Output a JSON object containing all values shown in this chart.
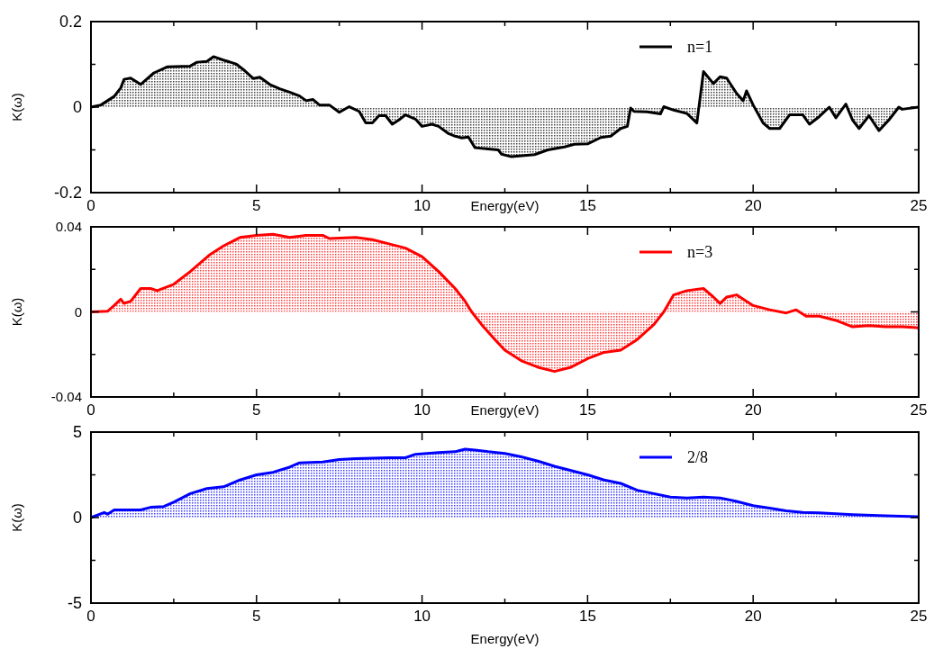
{
  "chart_data": [
    {
      "type": "area",
      "xlabel": "Energy(eV)",
      "ylabel": "K(ω)",
      "xlim": [
        0,
        25
      ],
      "xticks": [
        0,
        {
          "value": 2.5,
          "label": null
        },
        5,
        {
          "value": 7.5,
          "label": null
        },
        10,
        {
          "value": 12.5,
          "label": null
        },
        15,
        {
          "value": 17.5,
          "label": null
        },
        20,
        {
          "value": 22.5,
          "label": null
        },
        25
      ],
      "ylim": [
        -0.2,
        0.2
      ],
      "yticks": [
        -0.2,
        {
          "value": -0.1,
          "label": null
        },
        0,
        {
          "value": 0.1,
          "label": null
        },
        0.2
      ],
      "legend": "top right",
      "series": [
        {
          "name": "n=1",
          "color": "#000000",
          "x": [
            0,
            0.3,
            0.7,
            0.9,
            1.0,
            1.2,
            1.5,
            1.9,
            2.3,
            3.0,
            3.2,
            3.5,
            3.7,
            4.0,
            4.3,
            4.4,
            4.6,
            4.9,
            5.1,
            5.4,
            5.7,
            6.0,
            6.3,
            6.5,
            6.7,
            6.9,
            7.2,
            7.5,
            7.8,
            8.1,
            8.3,
            8.5,
            8.7,
            8.9,
            9.1,
            9.3,
            9.5,
            9.8,
            10.0,
            10.3,
            10.5,
            10.8,
            11.0,
            11.2,
            11.4,
            11.6,
            12.0,
            12.3,
            12.4,
            12.7,
            13.1,
            13.4,
            13.8,
            14.3,
            14.6,
            15.0,
            15.4,
            15.7,
            16.0,
            16.2,
            16.3,
            16.4,
            16.8,
            17.2,
            17.3,
            17.6,
            18.0,
            18.3,
            18.5,
            18.8,
            19.0,
            19.2,
            19.5,
            19.7,
            19.8,
            20.0,
            20.3,
            20.5,
            20.8,
            21.1,
            21.5,
            21.7,
            22.0,
            22.3,
            22.5,
            22.8,
            23.0,
            23.2,
            23.5,
            23.8,
            24.1,
            24.4,
            24.5,
            25
          ],
          "values": [
            0,
            0.005,
            0.025,
            0.045,
            0.065,
            0.068,
            0.053,
            0.08,
            0.094,
            0.096,
            0.105,
            0.107,
            0.118,
            0.11,
            0.103,
            0.1,
            0.088,
            0.067,
            0.07,
            0.053,
            0.043,
            0.035,
            0.026,
            0.015,
            0.018,
            0.005,
            0.005,
            -0.012,
            0.001,
            -0.01,
            -0.037,
            -0.037,
            -0.02,
            -0.02,
            -0.04,
            -0.03,
            -0.018,
            -0.028,
            -0.045,
            -0.04,
            -0.045,
            -0.062,
            -0.068,
            -0.072,
            -0.07,
            -0.095,
            -0.098,
            -0.1,
            -0.11,
            -0.116,
            -0.113,
            -0.111,
            -0.1,
            -0.093,
            -0.087,
            -0.086,
            -0.071,
            -0.068,
            -0.05,
            -0.045,
            -0.002,
            -0.01,
            -0.011,
            -0.016,
            0.001,
            -0.007,
            -0.015,
            -0.037,
            0.083,
            0.055,
            0.071,
            0.068,
            0.032,
            0.015,
            0.038,
            0.005,
            -0.037,
            -0.05,
            -0.05,
            -0.018,
            -0.018,
            -0.04,
            -0.022,
            0,
            -0.025,
            0.007,
            -0.03,
            -0.05,
            -0.02,
            -0.055,
            -0.03,
            0,
            -0.005,
            0
          ]
        }
      ]
    },
    {
      "type": "area",
      "xlabel": "Energy(eV)",
      "ylabel": "K(ω)",
      "xlim": [
        0,
        25
      ],
      "xticks": [
        0,
        {
          "value": 2.5,
          "label": null
        },
        5,
        {
          "value": 7.5,
          "label": null
        },
        10,
        {
          "value": 12.5,
          "label": null
        },
        15,
        {
          "value": 17.5,
          "label": null
        },
        20,
        {
          "value": 22.5,
          "label": null
        },
        25
      ],
      "ylim": [
        -0.04,
        0.04
      ],
      "yticks": [
        -0.04,
        {
          "value": -0.02,
          "label": null
        },
        0,
        {
          "value": 0.02,
          "label": null
        },
        0.04
      ],
      "legend": "top right",
      "series": [
        {
          "name": "n=3",
          "color": "#ff0000",
          "x": [
            0,
            0.5,
            0.7,
            0.9,
            1.0,
            1.2,
            1.4,
            1.5,
            1.8,
            2.0,
            2.5,
            3.0,
            3.3,
            3.6,
            4.0,
            4.5,
            5.0,
            5.5,
            6.0,
            6.5,
            7.0,
            7.2,
            8.0,
            8.5,
            9.0,
            9.5,
            10.0,
            10.5,
            11.0,
            11.3,
            11.5,
            11.8,
            12.2,
            12.5,
            13.0,
            13.5,
            14.0,
            14.5,
            15.0,
            15.5,
            16.0,
            16.5,
            17.0,
            17.3,
            17.6,
            18.0,
            18.5,
            18.8,
            19.0,
            19.2,
            19.5,
            19.8,
            20.0,
            20.5,
            21.0,
            21.3,
            21.6,
            22.0,
            22.5,
            23.0,
            23.5,
            24.0,
            24.5,
            25
          ],
          "values": [
            0,
            0.0003,
            0.003,
            0.006,
            0.004,
            0.005,
            0.009,
            0.011,
            0.011,
            0.01,
            0.013,
            0.019,
            0.023,
            0.027,
            0.031,
            0.035,
            0.036,
            0.0365,
            0.035,
            0.036,
            0.036,
            0.0345,
            0.035,
            0.034,
            0.032,
            0.03,
            0.026,
            0.019,
            0.011,
            0.005,
            0,
            -0.006,
            -0.013,
            -0.018,
            -0.023,
            -0.026,
            -0.028,
            -0.026,
            -0.022,
            -0.019,
            -0.018,
            -0.013,
            -0.006,
            0,
            0.008,
            0.01,
            0.011,
            0.007,
            0.004,
            0.007,
            0.008,
            0.005,
            0.003,
            0.001,
            -0.0005,
            0.001,
            -0.002,
            -0.002,
            -0.004,
            -0.007,
            -0.0065,
            -0.007,
            -0.007,
            -0.0075
          ]
        }
      ]
    },
    {
      "type": "area",
      "xlabel": "Energy(eV)",
      "ylabel": "K(ω)",
      "xlim": [
        0,
        25
      ],
      "xticks": [
        0,
        {
          "value": 2.5,
          "label": null
        },
        5,
        {
          "value": 7.5,
          "label": null
        },
        10,
        {
          "value": 12.5,
          "label": null
        },
        15,
        {
          "value": 17.5,
          "label": null
        },
        20,
        {
          "value": 22.5,
          "label": null
        },
        25
      ],
      "ylim": [
        -5,
        5
      ],
      "yticks": [
        -5,
        {
          "value": -2.5,
          "label": null
        },
        0,
        {
          "value": 2.5,
          "label": null
        },
        5
      ],
      "legend": "top right",
      "series": [
        {
          "name": "2/8",
          "color": "#0000ff",
          "x": [
            0,
            0.4,
            0.5,
            0.7,
            1.0,
            1.5,
            1.8,
            2.2,
            2.5,
            3.0,
            3.5,
            4.0,
            4.5,
            5.0,
            5.5,
            6.0,
            6.3,
            7.0,
            7.5,
            8.0,
            9.0,
            9.5,
            9.8,
            10.5,
            11.0,
            11.3,
            11.6,
            12.0,
            12.5,
            13.0,
            13.5,
            14.0,
            14.5,
            15.0,
            15.5,
            16.0,
            16.5,
            17.0,
            17.5,
            18.0,
            18.5,
            19.0,
            19.5,
            20.0,
            20.5,
            21.0,
            21.5,
            22.0,
            23.0,
            24.0,
            25
          ],
          "values": [
            0,
            0.3,
            0.2,
            0.45,
            0.45,
            0.45,
            0.6,
            0.65,
            0.9,
            1.4,
            1.7,
            1.8,
            2.2,
            2.5,
            2.65,
            2.95,
            3.2,
            3.25,
            3.4,
            3.45,
            3.5,
            3.5,
            3.7,
            3.8,
            3.85,
            4.0,
            3.95,
            3.85,
            3.75,
            3.55,
            3.3,
            3.0,
            2.75,
            2.5,
            2.2,
            2.0,
            1.6,
            1.4,
            1.2,
            1.15,
            1.2,
            1.15,
            0.95,
            0.7,
            0.55,
            0.4,
            0.3,
            0.28,
            0.17,
            0.1,
            0.05
          ]
        }
      ]
    }
  ]
}
